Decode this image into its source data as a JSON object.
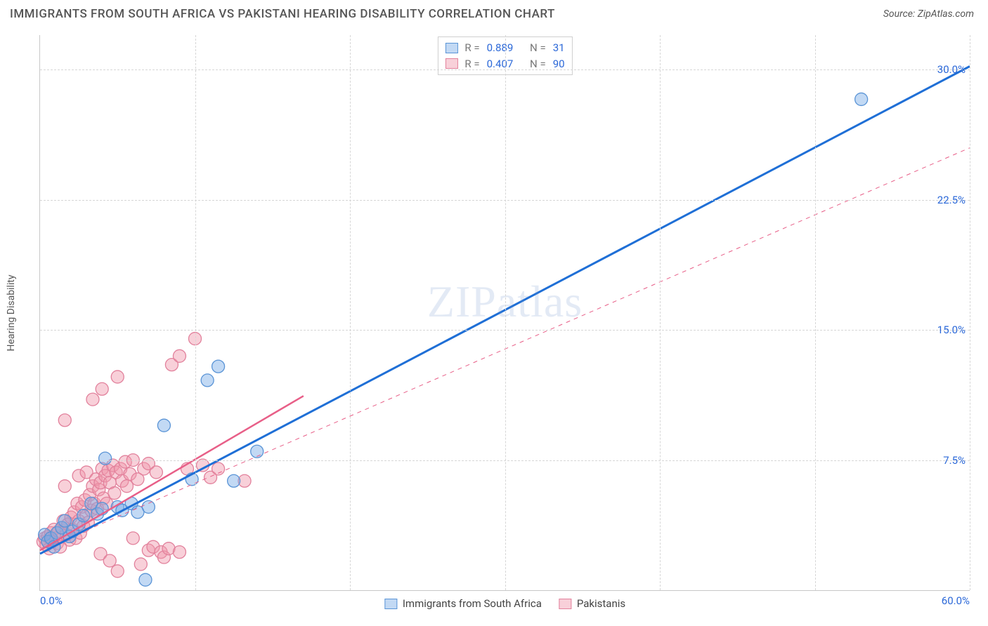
{
  "header": {
    "title": "IMMIGRANTS FROM SOUTH AFRICA VS PAKISTANI HEARING DISABILITY CORRELATION CHART",
    "source_prefix": "Source: ",
    "source_name": "ZipAtlas.com"
  },
  "watermark": {
    "zip": "ZIP",
    "atlas": "atlas"
  },
  "chart": {
    "type": "scatter",
    "ylabel": "Hearing Disability",
    "x_domain": [
      0,
      60
    ],
    "y_domain": [
      0,
      32
    ],
    "x_ticks": [
      0,
      10,
      20,
      30,
      40,
      50,
      60
    ],
    "x_tick_labels_visible": {
      "0": "0.0%",
      "60": "60.0%"
    },
    "y_ticks": [
      7.5,
      15.0,
      22.5,
      30.0
    ],
    "y_tick_labels": [
      "7.5%",
      "15.0%",
      "22.5%",
      "30.0%"
    ],
    "grid_color": "#d6d6d6",
    "axis_color": "#c8c8c8",
    "background": "#ffffff",
    "series": {
      "sa": {
        "label": "Immigrants from South Africa",
        "fill": "rgba(120,170,230,0.45)",
        "stroke": "#5a94d6",
        "line_color": "#1f6fd6",
        "line_width": 3,
        "line_dash": "none",
        "r_value": "0.889",
        "n_value": "31",
        "trend": {
          "x1": 0,
          "y1": 2.1,
          "x2": 60,
          "y2": 30.2
        },
        "marker_r": 9,
        "points": [
          [
            0.3,
            3.2
          ],
          [
            0.5,
            2.8
          ],
          [
            0.7,
            3.0
          ],
          [
            0.9,
            2.5
          ],
          [
            1.1,
            3.3
          ],
          [
            1.4,
            3.6
          ],
          [
            1.6,
            4.0
          ],
          [
            1.9,
            3.1
          ],
          [
            2.1,
            3.4
          ],
          [
            2.5,
            3.8
          ],
          [
            2.8,
            4.3
          ],
          [
            3.3,
            5.0
          ],
          [
            3.7,
            4.4
          ],
          [
            4.0,
            4.7
          ],
          [
            4.2,
            7.6
          ],
          [
            5.0,
            4.8
          ],
          [
            5.3,
            4.6
          ],
          [
            5.9,
            5.0
          ],
          [
            6.3,
            4.5
          ],
          [
            6.8,
            0.6
          ],
          [
            7.0,
            4.8
          ],
          [
            8.0,
            9.5
          ],
          [
            9.8,
            6.4
          ],
          [
            10.8,
            12.1
          ],
          [
            11.5,
            12.9
          ],
          [
            12.5,
            6.3
          ],
          [
            14.0,
            8.0
          ],
          [
            53.0,
            28.3
          ]
        ]
      },
      "pk": {
        "label": "Pakistanis",
        "fill": "rgba(240,150,170,0.45)",
        "stroke": "#e2819c",
        "line_color": "#e85f88",
        "solid_line_width": 2.5,
        "solid_line_dash": "none",
        "solid_trend": {
          "x1": 0,
          "y1": 2.3,
          "x2": 17,
          "y2": 11.2
        },
        "dashed_line_width": 1,
        "dashed_line_dash": "6 6",
        "dashed_trend": {
          "x1": 0,
          "y1": 2.3,
          "x2": 60,
          "y2": 25.5
        },
        "r_value": "0.407",
        "n_value": "90",
        "marker_r": 9,
        "points": [
          [
            0.2,
            2.8
          ],
          [
            0.3,
            3.0
          ],
          [
            0.4,
            2.6
          ],
          [
            0.5,
            3.1
          ],
          [
            0.6,
            2.4
          ],
          [
            0.7,
            3.3
          ],
          [
            0.8,
            2.9
          ],
          [
            0.9,
            3.5
          ],
          [
            1.0,
            3.0
          ],
          [
            1.1,
            2.7
          ],
          [
            1.2,
            3.4
          ],
          [
            1.3,
            2.5
          ],
          [
            1.4,
            3.6
          ],
          [
            1.5,
            4.0
          ],
          [
            1.6,
            6.0
          ],
          [
            1.6,
            9.8
          ],
          [
            1.7,
            3.2
          ],
          [
            1.8,
            3.8
          ],
          [
            1.9,
            2.9
          ],
          [
            2.0,
            4.2
          ],
          [
            2.1,
            3.5
          ],
          [
            2.2,
            4.5
          ],
          [
            2.3,
            3.0
          ],
          [
            2.4,
            5.0
          ],
          [
            2.5,
            4.0
          ],
          [
            2.5,
            6.6
          ],
          [
            2.6,
            3.3
          ],
          [
            2.7,
            4.8
          ],
          [
            2.8,
            3.7
          ],
          [
            2.9,
            5.2
          ],
          [
            3.0,
            4.3
          ],
          [
            3.0,
            6.8
          ],
          [
            3.1,
            3.9
          ],
          [
            3.2,
            5.5
          ],
          [
            3.3,
            4.6
          ],
          [
            3.4,
            6.0
          ],
          [
            3.4,
            11.0
          ],
          [
            3.5,
            5.0
          ],
          [
            3.6,
            6.4
          ],
          [
            3.7,
            4.7
          ],
          [
            3.8,
            5.8
          ],
          [
            3.9,
            6.2
          ],
          [
            3.9,
            2.1
          ],
          [
            4.0,
            7.0
          ],
          [
            4.0,
            11.6
          ],
          [
            4.1,
            5.3
          ],
          [
            4.2,
            6.6
          ],
          [
            4.3,
            5.0
          ],
          [
            4.4,
            6.9
          ],
          [
            4.5,
            6.2
          ],
          [
            4.5,
            1.7
          ],
          [
            4.7,
            7.2
          ],
          [
            4.8,
            5.6
          ],
          [
            4.9,
            6.8
          ],
          [
            5.0,
            1.1
          ],
          [
            5.0,
            12.3
          ],
          [
            5.2,
            7.0
          ],
          [
            5.3,
            6.3
          ],
          [
            5.5,
            7.4
          ],
          [
            5.6,
            6.0
          ],
          [
            5.8,
            6.7
          ],
          [
            6.0,
            3.0
          ],
          [
            6.0,
            7.5
          ],
          [
            6.3,
            6.4
          ],
          [
            6.5,
            1.5
          ],
          [
            6.7,
            7.0
          ],
          [
            7.0,
            2.3
          ],
          [
            7.0,
            7.3
          ],
          [
            7.3,
            2.5
          ],
          [
            7.5,
            6.8
          ],
          [
            7.8,
            2.2
          ],
          [
            8.0,
            1.9
          ],
          [
            8.3,
            2.4
          ],
          [
            8.5,
            13.0
          ],
          [
            9.0,
            2.2
          ],
          [
            9.0,
            13.5
          ],
          [
            9.5,
            7.0
          ],
          [
            10.0,
            14.5
          ],
          [
            10.5,
            7.2
          ],
          [
            11.0,
            6.5
          ],
          [
            11.5,
            7.0
          ],
          [
            13.2,
            6.3
          ]
        ]
      }
    },
    "legend_top": {
      "r_label": "R  =",
      "n_label": "N  ="
    },
    "legend_bottom": {
      "items": [
        "sa",
        "pk"
      ]
    }
  }
}
